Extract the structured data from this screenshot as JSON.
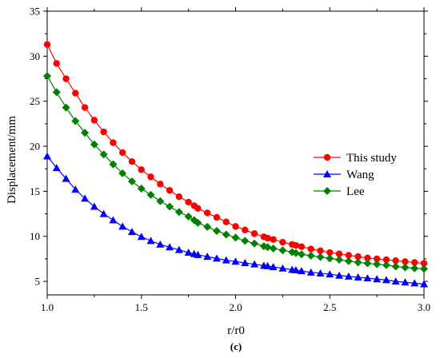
{
  "chart_data": {
    "type": "line",
    "xlabel": "r/r0",
    "ylabel": "Displacement/mm",
    "panel_label": "(c)",
    "xlim": [
      1.0,
      3.0
    ],
    "ylim": [
      3.5,
      35
    ],
    "x_ticks": [
      "1.0",
      "1.5",
      "2.0",
      "2.5",
      "3.0"
    ],
    "y_ticks": [
      "5",
      "10",
      "15",
      "20",
      "25",
      "30",
      "35"
    ],
    "x_tick_values": [
      1.0,
      1.5,
      2.0,
      2.5,
      3.0
    ],
    "y_tick_values": [
      5,
      10,
      15,
      20,
      25,
      30,
      35
    ],
    "legend_position": "right-middle",
    "grid": false,
    "series": [
      {
        "name": "This study",
        "color": "#ff0000",
        "marker": "circle",
        "x": [
          1.0,
          1.05,
          1.1,
          1.15,
          1.2,
          1.25,
          1.3,
          1.35,
          1.4,
          1.45,
          1.5,
          1.55,
          1.6,
          1.65,
          1.7,
          1.75,
          1.78,
          1.8,
          1.85,
          1.9,
          1.95,
          2.0,
          2.05,
          2.1,
          2.15,
          2.17,
          2.2,
          2.25,
          2.3,
          2.32,
          2.35,
          2.4,
          2.45,
          2.5,
          2.55,
          2.6,
          2.65,
          2.7,
          2.75,
          2.8,
          2.85,
          2.9,
          2.95,
          3.0
        ],
        "y": [
          31.3,
          29.2,
          27.5,
          25.9,
          24.3,
          22.9,
          21.6,
          20.4,
          19.3,
          18.3,
          17.4,
          16.6,
          15.8,
          15.1,
          14.4,
          13.8,
          13.4,
          13.1,
          12.6,
          12.1,
          11.6,
          11.1,
          10.7,
          10.3,
          9.95,
          9.8,
          9.65,
          9.35,
          9.1,
          9.0,
          8.85,
          8.6,
          8.4,
          8.2,
          8.05,
          7.9,
          7.75,
          7.6,
          7.5,
          7.4,
          7.3,
          7.2,
          7.1,
          7.0
        ]
      },
      {
        "name": "Wang",
        "color": "#0000ff",
        "marker": "triangle",
        "x": [
          1.0,
          1.05,
          1.1,
          1.15,
          1.2,
          1.25,
          1.3,
          1.35,
          1.4,
          1.45,
          1.5,
          1.55,
          1.6,
          1.65,
          1.7,
          1.75,
          1.78,
          1.8,
          1.85,
          1.9,
          1.95,
          2.0,
          2.05,
          2.1,
          2.15,
          2.17,
          2.2,
          2.25,
          2.3,
          2.32,
          2.35,
          2.4,
          2.45,
          2.5,
          2.55,
          2.6,
          2.65,
          2.7,
          2.75,
          2.8,
          2.85,
          2.9,
          2.95,
          3.0
        ],
        "y": [
          18.9,
          17.6,
          16.4,
          15.2,
          14.2,
          13.3,
          12.5,
          11.8,
          11.1,
          10.5,
          9.95,
          9.5,
          9.1,
          8.8,
          8.5,
          8.2,
          8.05,
          7.95,
          7.75,
          7.55,
          7.35,
          7.2,
          7.05,
          6.9,
          6.75,
          6.7,
          6.6,
          6.45,
          6.3,
          6.25,
          6.15,
          6.0,
          5.9,
          5.8,
          5.65,
          5.55,
          5.45,
          5.35,
          5.25,
          5.15,
          5.0,
          4.9,
          4.8,
          4.7
        ]
      },
      {
        "name": "Lee",
        "color": "#008000",
        "marker": "diamond",
        "x": [
          1.0,
          1.05,
          1.1,
          1.15,
          1.2,
          1.25,
          1.3,
          1.35,
          1.4,
          1.45,
          1.5,
          1.55,
          1.6,
          1.65,
          1.7,
          1.75,
          1.78,
          1.8,
          1.85,
          1.9,
          1.95,
          2.0,
          2.05,
          2.1,
          2.15,
          2.17,
          2.2,
          2.25,
          2.3,
          2.32,
          2.35,
          2.4,
          2.45,
          2.5,
          2.55,
          2.6,
          2.65,
          2.7,
          2.75,
          2.8,
          2.85,
          2.9,
          2.95,
          3.0
        ],
        "y": [
          27.8,
          26.0,
          24.3,
          22.8,
          21.5,
          20.2,
          19.1,
          18.0,
          17.0,
          16.1,
          15.3,
          14.6,
          13.9,
          13.3,
          12.7,
          12.2,
          11.8,
          11.5,
          11.05,
          10.6,
          10.2,
          9.85,
          9.5,
          9.2,
          8.9,
          8.8,
          8.65,
          8.45,
          8.25,
          8.15,
          8.0,
          7.85,
          7.7,
          7.55,
          7.4,
          7.25,
          7.1,
          7.0,
          6.9,
          6.8,
          6.65,
          6.55,
          6.45,
          6.4
        ]
      }
    ]
  }
}
